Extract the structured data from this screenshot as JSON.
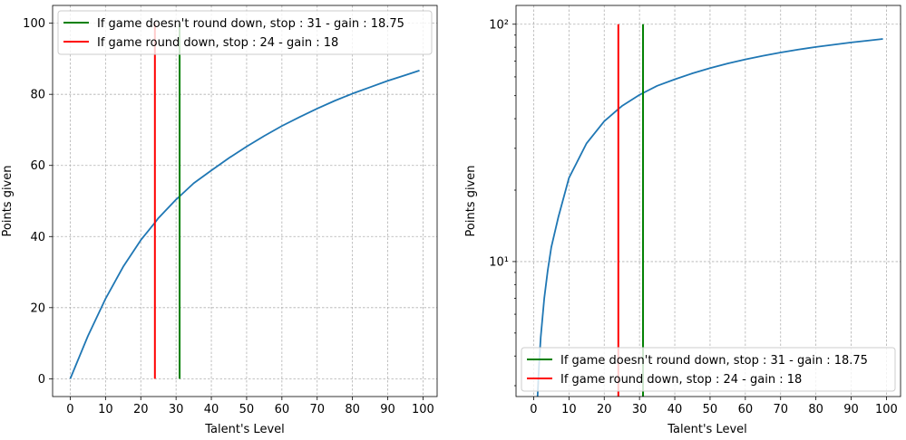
{
  "chart_data": [
    {
      "type": "line",
      "title": "",
      "xlabel": "Talent's Level",
      "ylabel": "Points given",
      "yscale": "linear",
      "xlim": [
        -5,
        104
      ],
      "ylim": [
        -5,
        105
      ],
      "xticks": [
        0,
        10,
        20,
        30,
        40,
        50,
        60,
        70,
        80,
        90,
        100
      ],
      "yticks": [
        0,
        20,
        40,
        60,
        80,
        100
      ],
      "ytick_labels": [
        "0",
        "20",
        "40",
        "60",
        "80",
        "100"
      ],
      "grid": true,
      "legend_position": "top-left",
      "curve": {
        "color": "#1f77b4",
        "x": [
          0,
          5,
          10,
          15,
          20,
          24,
          25,
          30,
          31,
          35,
          40,
          45,
          50,
          55,
          60,
          65,
          70,
          75,
          80,
          85,
          90,
          95,
          99
        ],
        "y": [
          0,
          12,
          22.5,
          31.5,
          39,
          43.9,
          45.2,
          50.4,
          51.3,
          55,
          58.6,
          62.1,
          65.3,
          68.3,
          71.1,
          73.6,
          76,
          78.2,
          80.2,
          82,
          83.8,
          85.4,
          86.7
        ]
      },
      "vlines": [
        {
          "name": "If game doesn't round down, stop : 31 - gain : 18.75",
          "x": 31,
          "ymin": 0,
          "ymax": 100,
          "color": "#008000"
        },
        {
          "name": "If game round down, stop : 24 - gain : 18",
          "x": 24,
          "ymin": 0,
          "ymax": 100,
          "color": "#ff0000"
        }
      ]
    },
    {
      "type": "line",
      "title": "",
      "xlabel": "Talent's Level",
      "ylabel": "Points given",
      "yscale": "log",
      "xlim": [
        -5,
        104
      ],
      "ylim": [
        2.7,
        120
      ],
      "xticks": [
        0,
        10,
        20,
        30,
        40,
        50,
        60,
        70,
        80,
        90,
        100
      ],
      "yticks": [
        10,
        100
      ],
      "ytick_labels": [
        "10¹",
        "10²"
      ],
      "grid": true,
      "legend_position": "bottom-right",
      "curve": {
        "color": "#1f77b4",
        "x": [
          1,
          1.5,
          2,
          3,
          4,
          5,
          7,
          10,
          15,
          20,
          24,
          25,
          30,
          31,
          35,
          40,
          45,
          50,
          55,
          60,
          65,
          70,
          75,
          80,
          85,
          90,
          95,
          99
        ],
        "y": [
          2.5,
          3.6,
          4.8,
          7,
          9.2,
          11.5,
          15.4,
          22.5,
          31.5,
          39,
          43.9,
          45.2,
          50.4,
          51.3,
          55,
          58.6,
          62.1,
          65.3,
          68.3,
          71.1,
          73.6,
          76,
          78.2,
          80.2,
          82,
          83.8,
          85.4,
          86.7
        ]
      },
      "vlines": [
        {
          "name": "If game doesn't round down, stop : 31 - gain : 18.75",
          "x": 31,
          "ymin": 2.7,
          "ymax": 100,
          "color": "#008000"
        },
        {
          "name": "If game round down, stop : 24 - gain : 18",
          "x": 24,
          "ymin": 2.7,
          "ymax": 100,
          "color": "#ff0000"
        }
      ]
    }
  ]
}
